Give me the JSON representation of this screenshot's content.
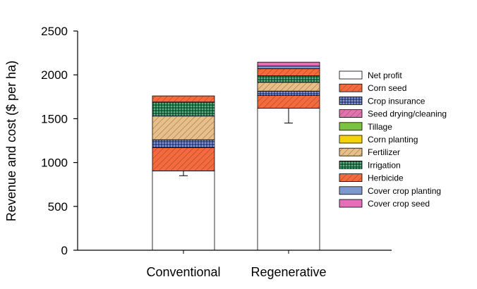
{
  "chart_data": {
    "type": "bar",
    "stacked": true,
    "categories": [
      "Conventional",
      "Regenerative"
    ],
    "ylabel": "Revenue and cost ($ per ha)",
    "ylim": [
      0,
      2500
    ],
    "yticks": [
      0,
      500,
      1000,
      1500,
      2000,
      2500
    ],
    "error_bars": [
      {
        "category": "Conventional",
        "value": 905,
        "lower": 850
      },
      {
        "category": "Regenerative",
        "value": 1620,
        "lower": 1450
      }
    ],
    "series": [
      {
        "name": "Net profit",
        "values": [
          905,
          1620
        ],
        "color": "#ffffff",
        "pattern": "none"
      },
      {
        "name": "Corn seed",
        "values": [
          265,
          145
        ],
        "color": "#f26a3d",
        "pattern": "diag"
      },
      {
        "name": "Crop insurance",
        "values": [
          90,
          50
        ],
        "color": "#4a5fa8",
        "pattern": "dots"
      },
      {
        "name": "Seed drying/cleaning",
        "values": [
          0,
          0
        ],
        "color": "#e073b0",
        "pattern": "diag"
      },
      {
        "name": "Tillage",
        "values": [
          0,
          0
        ],
        "color": "#7cc242",
        "pattern": "none"
      },
      {
        "name": "Corn planting",
        "values": [
          0,
          0
        ],
        "color": "#f5d20f",
        "pattern": "none"
      },
      {
        "name": "Fertilizer",
        "values": [
          270,
          100
        ],
        "color": "#e6c08a",
        "pattern": "diag"
      },
      {
        "name": "Irrigation",
        "values": [
          160,
          75
        ],
        "color": "#1e7a4a",
        "pattern": "dots"
      },
      {
        "name": "Herbicide",
        "values": [
          70,
          80
        ],
        "color": "#f26a3d",
        "pattern": "diag"
      },
      {
        "name": "Cover crop planting",
        "values": [
          0,
          30
        ],
        "color": "#7f97cf",
        "pattern": "none"
      },
      {
        "name": "Cover crop seed",
        "values": [
          0,
          45
        ],
        "color": "#e46fb9",
        "pattern": "none"
      }
    ]
  }
}
